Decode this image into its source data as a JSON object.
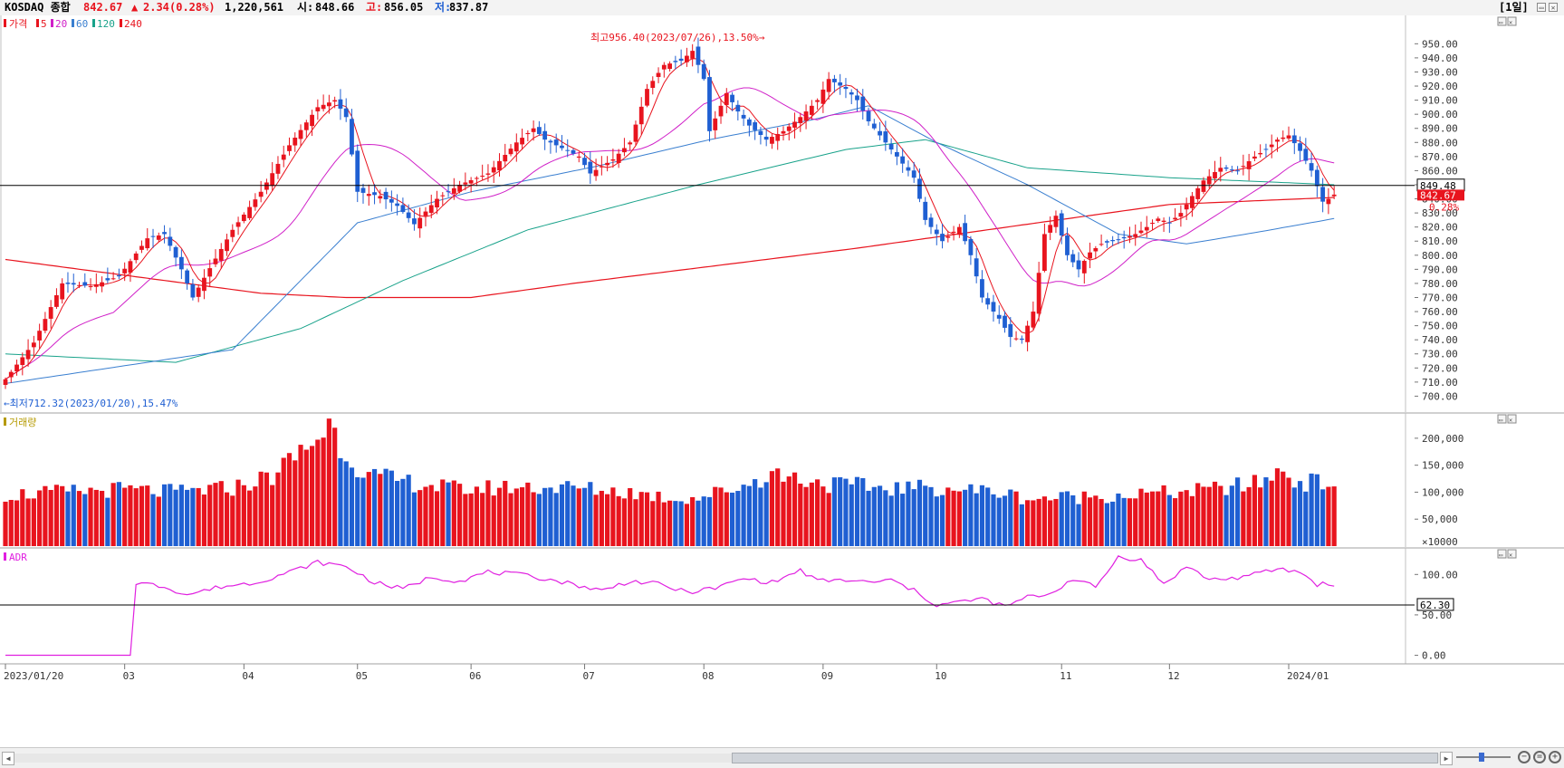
{
  "header": {
    "name": "KOSDAQ 종합",
    "price": "842.67",
    "arrow": "▲",
    "change": "2.34",
    "change_pct": "(0.28%)",
    "volume": "1,220,561",
    "open_label": "시:",
    "open": "848.66",
    "high_label": "고:",
    "high": "856.05",
    "low_label": "저:",
    "low": "837.87",
    "period": "[1일]"
  },
  "colors": {
    "up": "#e8141e",
    "down": "#1f5fd2",
    "ma5": "#e8141e",
    "ma20": "#d020c8",
    "ma60": "#3a7fd0",
    "ma120": "#18a28a",
    "ma240": "#e8141e",
    "adr": "#e020e0",
    "volume_label": "#b59a00",
    "annot_high": "#e8141e",
    "annot_low": "#1f5fd2"
  },
  "icons": [
    "minimize-icon",
    "close-icon",
    "scroll-left-icon",
    "scroll-right-icon",
    "zoom-out-icon",
    "zoom-reset-icon",
    "zoom-in-icon"
  ],
  "chart_data": [
    {
      "type": "candlestick",
      "panel": "price",
      "legend": {
        "price": "가격",
        "ma": [
          "5",
          "20",
          "60",
          "120",
          "240"
        ]
      },
      "ylim": [
        690,
        965
      ],
      "yticks": [
        700,
        710,
        720,
        730,
        740,
        750,
        760,
        770,
        780,
        790,
        800,
        810,
        820,
        830,
        840,
        850,
        860,
        870,
        880,
        890,
        900,
        910,
        920,
        930,
        940,
        950
      ],
      "ytick_labels": [
        "700.00",
        "710.00",
        "720.00",
        "730.00",
        "740.00",
        "750.00",
        "760.00",
        "770.00",
        "780.00",
        "790.00",
        "800.00",
        "810.00",
        "820.00",
        "830.00",
        "840.00",
        "850.00",
        "860.00",
        "870.00",
        "880.00",
        "890.00",
        "900.00",
        "910.00",
        "920.00",
        "930.00",
        "940.00",
        "950.00"
      ],
      "reference_line": {
        "value": 849.48,
        "label": "849.48"
      },
      "current": {
        "value": 842.67,
        "label": "842.67",
        "pct_label": "0.28%"
      },
      "annotations": {
        "high": {
          "text": "최고956.40(2023/07/26),13.50%",
          "value": 956.4,
          "date": "2023/07/26"
        },
        "low": {
          "text": "최저712.32(2023/01/20),15.47%",
          "value": 712.32,
          "date": "2023/01/20"
        }
      },
      "x_labels": [
        "2023/01/20",
        "03",
        "04",
        "05",
        "06",
        "07",
        "08",
        "09",
        "10",
        "11",
        "12",
        "2024/01"
      ],
      "x_label_index": [
        0,
        21,
        42,
        62,
        82,
        102,
        123,
        144,
        164,
        186,
        205,
        226
      ],
      "close_anchors": [
        [
          0,
          712
        ],
        [
          5,
          738
        ],
        [
          10,
          780
        ],
        [
          15,
          778
        ],
        [
          20,
          785
        ],
        [
          25,
          812
        ],
        [
          28,
          815
        ],
        [
          31,
          790
        ],
        [
          33,
          770
        ],
        [
          35,
          784
        ],
        [
          40,
          818
        ],
        [
          45,
          845
        ],
        [
          50,
          878
        ],
        [
          55,
          905
        ],
        [
          58,
          910
        ],
        [
          60,
          898
        ],
        [
          62,
          845
        ],
        [
          66,
          842
        ],
        [
          69,
          835
        ],
        [
          72,
          822
        ],
        [
          76,
          840
        ],
        [
          80,
          850
        ],
        [
          85,
          858
        ],
        [
          90,
          880
        ],
        [
          93,
          890
        ],
        [
          95,
          882
        ],
        [
          98,
          876
        ],
        [
          101,
          870
        ],
        [
          103,
          858
        ],
        [
          107,
          868
        ],
        [
          110,
          880
        ],
        [
          113,
          918
        ],
        [
          116,
          935
        ],
        [
          119,
          938
        ],
        [
          121,
          945
        ],
        [
          123,
          925
        ],
        [
          124,
          888
        ],
        [
          127,
          915
        ],
        [
          129,
          902
        ],
        [
          131,
          892
        ],
        [
          134,
          882
        ],
        [
          137,
          888
        ],
        [
          140,
          898
        ],
        [
          143,
          910
        ],
        [
          145,
          925
        ],
        [
          148,
          918
        ],
        [
          150,
          910
        ],
        [
          152,
          895
        ],
        [
          154,
          885
        ],
        [
          157,
          870
        ],
        [
          160,
          855
        ],
        [
          162,
          825
        ],
        [
          165,
          810
        ],
        [
          168,
          820
        ],
        [
          170,
          800
        ],
        [
          172,
          770
        ],
        [
          175,
          755
        ],
        [
          177,
          742
        ],
        [
          179,
          740
        ],
        [
          181,
          760
        ],
        [
          183,
          815
        ],
        [
          185,
          828
        ],
        [
          187,
          800
        ],
        [
          189,
          790
        ],
        [
          191,
          802
        ],
        [
          193,
          808
        ],
        [
          195,
          810
        ],
        [
          197,
          812
        ],
        [
          199,
          815
        ],
        [
          201,
          820
        ],
        [
          203,
          826
        ],
        [
          205,
          823
        ],
        [
          207,
          830
        ],
        [
          209,
          842
        ],
        [
          211,
          853
        ],
        [
          214,
          862
        ],
        [
          217,
          860
        ],
        [
          220,
          870
        ],
        [
          222,
          875
        ],
        [
          224,
          882
        ],
        [
          226,
          885
        ],
        [
          228,
          874
        ],
        [
          230,
          860
        ],
        [
          232,
          838
        ],
        [
          233,
          840
        ],
        [
          234,
          843
        ]
      ],
      "ma_anchors": {
        "ma5": "computed: 5-day moving average of close",
        "ma20": "computed: 20-day moving average of close",
        "ma60": [
          [
            0,
            709
          ],
          [
            40,
            733
          ],
          [
            62,
            823
          ],
          [
            82,
            845
          ],
          [
            104,
            863
          ],
          [
            124,
            882
          ],
          [
            142,
            896
          ],
          [
            152,
            906
          ],
          [
            164,
            880
          ],
          [
            180,
            850
          ],
          [
            196,
            815
          ],
          [
            208,
            808
          ],
          [
            220,
            816
          ],
          [
            234,
            826
          ]
        ],
        "ma120": [
          [
            0,
            730
          ],
          [
            30,
            724
          ],
          [
            52,
            748
          ],
          [
            70,
            782
          ],
          [
            92,
            818
          ],
          [
            122,
            850
          ],
          [
            148,
            875
          ],
          [
            162,
            882
          ],
          [
            180,
            862
          ],
          [
            205,
            855
          ],
          [
            234,
            850
          ]
        ],
        "ma240": [
          [
            0,
            797
          ],
          [
            45,
            773
          ],
          [
            60,
            770
          ],
          [
            82,
            770
          ],
          [
            100,
            780
          ],
          [
            130,
            795
          ],
          [
            150,
            805
          ],
          [
            180,
            822
          ],
          [
            205,
            836
          ],
          [
            234,
            841
          ]
        ]
      }
    },
    {
      "type": "bar",
      "panel": "volume",
      "title": "거래량",
      "ylim": [
        0,
        230
      ],
      "yticks": [
        50,
        100,
        150,
        200
      ],
      "ytick_labels": [
        "50,000",
        "100,000",
        "150,000",
        "200,000"
      ],
      "unit_label": "×10000",
      "value_anchors": [
        [
          0,
          95
        ],
        [
          10,
          100
        ],
        [
          20,
          105
        ],
        [
          30,
          100
        ],
        [
          40,
          108
        ],
        [
          47,
          130
        ],
        [
          52,
          175
        ],
        [
          55,
          200
        ],
        [
          57,
          228
        ],
        [
          60,
          170
        ],
        [
          64,
          130
        ],
        [
          70,
          120
        ],
        [
          80,
          105
        ],
        [
          90,
          110
        ],
        [
          100,
          108
        ],
        [
          110,
          100
        ],
        [
          118,
          88
        ],
        [
          122,
          90
        ],
        [
          130,
          112
        ],
        [
          135,
          135
        ],
        [
          145,
          115
        ],
        [
          155,
          108
        ],
        [
          165,
          108
        ],
        [
          175,
          100
        ],
        [
          180,
          88
        ],
        [
          190,
          92
        ],
        [
          200,
          96
        ],
        [
          210,
          102
        ],
        [
          220,
          115
        ],
        [
          225,
          140
        ],
        [
          228,
          118
        ],
        [
          234,
          118
        ]
      ]
    },
    {
      "type": "line",
      "panel": "indicator",
      "title": "ADR",
      "ylim": [
        -5,
        125
      ],
      "yticks": [
        0,
        50,
        100
      ],
      "ytick_labels": [
        "0.00",
        "50.00",
        "100.00"
      ],
      "reference_line": {
        "value": 62.3,
        "label": "62.30"
      },
      "anchors": [
        [
          0,
          0
        ],
        [
          22,
          0
        ],
        [
          23,
          90
        ],
        [
          28,
          85
        ],
        [
          32,
          75
        ],
        [
          38,
          85
        ],
        [
          44,
          90
        ],
        [
          50,
          103
        ],
        [
          55,
          115
        ],
        [
          60,
          110
        ],
        [
          65,
          90
        ],
        [
          70,
          82
        ],
        [
          75,
          97
        ],
        [
          80,
          92
        ],
        [
          85,
          103
        ],
        [
          90,
          100
        ],
        [
          95,
          95
        ],
        [
          100,
          88
        ],
        [
          105,
          80
        ],
        [
          110,
          92
        ],
        [
          115,
          88
        ],
        [
          120,
          78
        ],
        [
          125,
          83
        ],
        [
          130,
          95
        ],
        [
          135,
          90
        ],
        [
          140,
          105
        ],
        [
          143,
          92
        ],
        [
          148,
          93
        ],
        [
          152,
          90
        ],
        [
          156,
          93
        ],
        [
          160,
          80
        ],
        [
          164,
          62
        ],
        [
          168,
          66
        ],
        [
          172,
          70
        ],
        [
          176,
          60
        ],
        [
          180,
          72
        ],
        [
          184,
          76
        ],
        [
          188,
          95
        ],
        [
          192,
          84
        ],
        [
          196,
          122
        ],
        [
          200,
          118
        ],
        [
          204,
          88
        ],
        [
          208,
          110
        ],
        [
          212,
          94
        ],
        [
          216,
          95
        ],
        [
          220,
          100
        ],
        [
          224,
          107
        ],
        [
          228,
          103
        ],
        [
          231,
          88
        ],
        [
          233,
          88
        ]
      ]
    }
  ]
}
